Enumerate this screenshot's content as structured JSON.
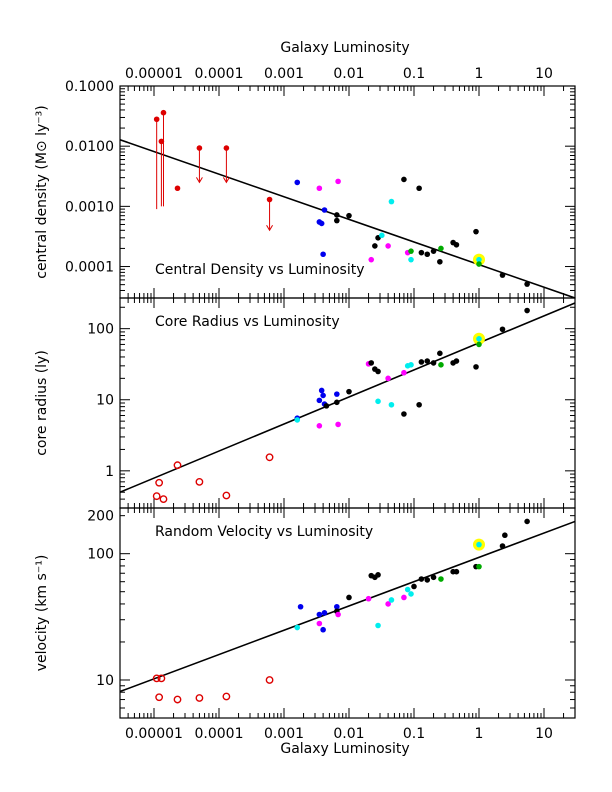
{
  "figure": {
    "top_axis_label": "Galaxy Luminosity",
    "bottom_axis_label": "Galaxy Luminosity"
  },
  "colors": {
    "red": "#dd0000",
    "blue": "#0000ee",
    "magenta": "#ff00ff",
    "cyan": "#00eeee",
    "black": "#000000",
    "green": "#00aa00",
    "highlight": "#ffff00"
  },
  "chart_data": [
    {
      "type": "scatter",
      "id": "density",
      "title": "Central Density vs Luminosity",
      "ylabel": "central density (M⊙ ly⁻³)",
      "xscale": "log",
      "yscale": "log",
      "xlim": [
        3e-06,
        30
      ],
      "ylim": [
        3e-05,
        0.1
      ],
      "xticks": [
        {
          "v": 1e-05,
          "label": "0.00001"
        },
        {
          "v": 0.0001,
          "label": "0.0001"
        },
        {
          "v": 0.001,
          "label": "0.001"
        },
        {
          "v": 0.01,
          "label": "0.01"
        },
        {
          "v": 0.1,
          "label": "0.1"
        },
        {
          "v": 1,
          "label": "1"
        },
        {
          "v": 10,
          "label": "10"
        }
      ],
      "yticks": [
        {
          "v": 0.0001,
          "label": "0.0001"
        },
        {
          "v": 0.001,
          "label": "0.0010"
        },
        {
          "v": 0.01,
          "label": "0.0100"
        },
        {
          "v": 0.1,
          "label": "0.1000"
        }
      ],
      "fit_line": {
        "x": [
          3e-06,
          30
        ],
        "y": [
          0.0128,
          3e-05
        ]
      },
      "points": [
        {
          "x": 1.1e-05,
          "y": 0.028,
          "c": "red",
          "err_to": 0.0009
        },
        {
          "x": 1.3e-05,
          "y": 0.012,
          "c": "red",
          "err_to": 0.001
        },
        {
          "x": 1.4e-05,
          "y": 0.036,
          "c": "red",
          "err_to": 0.001
        },
        {
          "x": 2.3e-05,
          "y": 0.002,
          "c": "red"
        },
        {
          "x": 5e-05,
          "y": 0.0093,
          "c": "red",
          "arrow_to": 0.0025
        },
        {
          "x": 0.00013,
          "y": 0.0093,
          "c": "red",
          "arrow_to": 0.0025
        },
        {
          "x": 0.0006,
          "y": 0.0013,
          "c": "red",
          "arrow_to": 0.0004
        },
        {
          "x": 0.0016,
          "y": 0.0025,
          "c": "blue"
        },
        {
          "x": 0.0035,
          "y": 0.00055,
          "c": "blue"
        },
        {
          "x": 0.0038,
          "y": 0.00052,
          "c": "blue"
        },
        {
          "x": 0.0042,
          "y": 0.00087,
          "c": "blue"
        },
        {
          "x": 0.004,
          "y": 0.00016,
          "c": "blue"
        },
        {
          "x": 0.0035,
          "y": 0.002,
          "c": "magenta"
        },
        {
          "x": 0.0068,
          "y": 0.0026,
          "c": "magenta"
        },
        {
          "x": 0.0065,
          "y": 0.00072,
          "c": "black"
        },
        {
          "x": 0.0065,
          "y": 0.00058,
          "c": "black"
        },
        {
          "x": 0.01,
          "y": 0.0007,
          "c": "black"
        },
        {
          "x": 0.025,
          "y": 0.00022,
          "c": "black"
        },
        {
          "x": 0.028,
          "y": 0.0003,
          "c": "black"
        },
        {
          "x": 0.032,
          "y": 0.00033,
          "c": "cyan"
        },
        {
          "x": 0.022,
          "y": 0.00013,
          "c": "magenta"
        },
        {
          "x": 0.04,
          "y": 0.00022,
          "c": "magenta"
        },
        {
          "x": 0.045,
          "y": 0.0012,
          "c": "cyan"
        },
        {
          "x": 0.07,
          "y": 0.0028,
          "c": "black"
        },
        {
          "x": 0.08,
          "y": 0.00017,
          "c": "magenta"
        },
        {
          "x": 0.09,
          "y": 0.00013,
          "c": "cyan"
        },
        {
          "x": 0.09,
          "y": 0.00018,
          "c": "green"
        },
        {
          "x": 0.12,
          "y": 0.002,
          "c": "black"
        },
        {
          "x": 0.13,
          "y": 0.00017,
          "c": "black"
        },
        {
          "x": 0.16,
          "y": 0.00016,
          "c": "black"
        },
        {
          "x": 0.2,
          "y": 0.00018,
          "c": "black"
        },
        {
          "x": 0.25,
          "y": 0.00012,
          "c": "black"
        },
        {
          "x": 0.26,
          "y": 0.0002,
          "c": "green"
        },
        {
          "x": 0.4,
          "y": 0.00025,
          "c": "black"
        },
        {
          "x": 0.45,
          "y": 0.00023,
          "c": "black"
        },
        {
          "x": 0.9,
          "y": 0.00038,
          "c": "black"
        },
        {
          "x": 1,
          "y": 0.00013,
          "c": "cyan",
          "highlight": true
        },
        {
          "x": 1,
          "y": 0.00011,
          "c": "green"
        },
        {
          "x": 2.3,
          "y": 7.2e-05,
          "c": "black"
        },
        {
          "x": 5.5,
          "y": 5.1e-05,
          "c": "black"
        }
      ]
    },
    {
      "type": "scatter",
      "id": "radius",
      "title": "Core Radius vs Luminosity",
      "ylabel": "core radius (ly)",
      "xscale": "log",
      "yscale": "log",
      "xlim": [
        3e-06,
        30
      ],
      "ylim": [
        0.3,
        270
      ],
      "xticks": [
        {
          "v": 1e-05,
          "label": ""
        },
        {
          "v": 0.0001,
          "label": ""
        },
        {
          "v": 0.001,
          "label": ""
        },
        {
          "v": 0.01,
          "label": ""
        },
        {
          "v": 0.1,
          "label": ""
        },
        {
          "v": 1,
          "label": ""
        },
        {
          "v": 10,
          "label": ""
        }
      ],
      "yticks": [
        {
          "v": 1,
          "label": "1"
        },
        {
          "v": 10,
          "label": "10"
        },
        {
          "v": 100,
          "label": "100"
        }
      ],
      "fit_line": {
        "x": [
          3e-06,
          30
        ],
        "y": [
          0.5,
          230
        ]
      },
      "points": [
        {
          "x": 1.1e-05,
          "y": 0.44,
          "c": "red",
          "open": true
        },
        {
          "x": 1.2e-05,
          "y": 0.68,
          "c": "red",
          "open": true
        },
        {
          "x": 1.4e-05,
          "y": 0.4,
          "c": "red",
          "open": true
        },
        {
          "x": 2.3e-05,
          "y": 1.2,
          "c": "red",
          "open": true
        },
        {
          "x": 5e-05,
          "y": 0.7,
          "c": "red",
          "open": true
        },
        {
          "x": 0.00013,
          "y": 0.45,
          "c": "red",
          "open": true
        },
        {
          "x": 0.0006,
          "y": 1.55,
          "c": "red",
          "open": true
        },
        {
          "x": 0.0016,
          "y": 5.5,
          "c": "blue"
        },
        {
          "x": 0.0016,
          "y": 5.2,
          "c": "cyan"
        },
        {
          "x": 0.0035,
          "y": 4.3,
          "c": "magenta"
        },
        {
          "x": 0.0035,
          "y": 9.8,
          "c": "blue"
        },
        {
          "x": 0.0038,
          "y": 13.5,
          "c": "blue"
        },
        {
          "x": 0.004,
          "y": 11.5,
          "c": "blue"
        },
        {
          "x": 0.0042,
          "y": 8.7,
          "c": "blue"
        },
        {
          "x": 0.0045,
          "y": 8.2,
          "c": "black"
        },
        {
          "x": 0.0065,
          "y": 12,
          "c": "blue"
        },
        {
          "x": 0.0065,
          "y": 9.2,
          "c": "black"
        },
        {
          "x": 0.0068,
          "y": 4.5,
          "c": "magenta"
        },
        {
          "x": 0.01,
          "y": 13,
          "c": "black"
        },
        {
          "x": 0.02,
          "y": 32,
          "c": "magenta"
        },
        {
          "x": 0.022,
          "y": 33,
          "c": "black"
        },
        {
          "x": 0.025,
          "y": 27,
          "c": "black"
        },
        {
          "x": 0.028,
          "y": 25,
          "c": "black"
        },
        {
          "x": 0.028,
          "y": 9.5,
          "c": "cyan"
        },
        {
          "x": 0.04,
          "y": 20,
          "c": "magenta"
        },
        {
          "x": 0.045,
          "y": 8.5,
          "c": "cyan"
        },
        {
          "x": 0.07,
          "y": 6.3,
          "c": "black"
        },
        {
          "x": 0.08,
          "y": 30,
          "c": "cyan"
        },
        {
          "x": 0.07,
          "y": 24,
          "c": "magenta"
        },
        {
          "x": 0.09,
          "y": 31,
          "c": "cyan"
        },
        {
          "x": 0.12,
          "y": 8.5,
          "c": "black"
        },
        {
          "x": 0.13,
          "y": 34,
          "c": "black"
        },
        {
          "x": 0.16,
          "y": 35,
          "c": "black"
        },
        {
          "x": 0.2,
          "y": 33,
          "c": "black"
        },
        {
          "x": 0.25,
          "y": 45,
          "c": "black"
        },
        {
          "x": 0.26,
          "y": 31,
          "c": "green"
        },
        {
          "x": 0.4,
          "y": 33,
          "c": "black"
        },
        {
          "x": 0.45,
          "y": 35,
          "c": "black"
        },
        {
          "x": 0.9,
          "y": 29,
          "c": "black"
        },
        {
          "x": 1,
          "y": 72,
          "c": "cyan",
          "highlight": true
        },
        {
          "x": 1,
          "y": 60,
          "c": "green"
        },
        {
          "x": 2.3,
          "y": 98,
          "c": "black"
        },
        {
          "x": 5.5,
          "y": 180,
          "c": "black"
        }
      ]
    },
    {
      "type": "scatter",
      "id": "velocity",
      "title": "Random Velocity vs Luminosity",
      "ylabel": "velocity (km s⁻¹)",
      "xscale": "log",
      "yscale": "log",
      "xlim": [
        3e-06,
        30
      ],
      "ylim": [
        5,
        230
      ],
      "xticks": [
        {
          "v": 1e-05,
          "label": "0.00001"
        },
        {
          "v": 0.0001,
          "label": "0.0001"
        },
        {
          "v": 0.001,
          "label": "0.001"
        },
        {
          "v": 0.01,
          "label": "0.01"
        },
        {
          "v": 0.1,
          "label": "0.1"
        },
        {
          "v": 1,
          "label": "1"
        },
        {
          "v": 10,
          "label": "10"
        }
      ],
      "yticks": [
        {
          "v": 10,
          "label": "10"
        },
        {
          "v": 100,
          "label": "100"
        },
        {
          "v": 200,
          "label": "200"
        }
      ],
      "xlabel": "Galaxy Luminosity",
      "fit_line": {
        "x": [
          3e-06,
          30
        ],
        "y": [
          8.1,
          180
        ]
      },
      "points": [
        {
          "x": 1.1e-05,
          "y": 10.3,
          "c": "red",
          "open": true
        },
        {
          "x": 1.3e-05,
          "y": 10.3,
          "c": "red",
          "open": true
        },
        {
          "x": 1.2e-05,
          "y": 7.3,
          "c": "red",
          "open": true
        },
        {
          "x": 2.3e-05,
          "y": 7,
          "c": "red",
          "open": true
        },
        {
          "x": 5e-05,
          "y": 7.2,
          "c": "red",
          "open": true
        },
        {
          "x": 0.00013,
          "y": 7.4,
          "c": "red",
          "open": true
        },
        {
          "x": 0.0006,
          "y": 10,
          "c": "red",
          "open": true
        },
        {
          "x": 0.0016,
          "y": 26,
          "c": "cyan"
        },
        {
          "x": 0.0018,
          "y": 38,
          "c": "blue"
        },
        {
          "x": 0.0035,
          "y": 33,
          "c": "blue"
        },
        {
          "x": 0.0035,
          "y": 28,
          "c": "magenta"
        },
        {
          "x": 0.004,
          "y": 25,
          "c": "blue"
        },
        {
          "x": 0.0042,
          "y": 34,
          "c": "blue"
        },
        {
          "x": 0.0065,
          "y": 38,
          "c": "blue"
        },
        {
          "x": 0.0065,
          "y": 35,
          "c": "black"
        },
        {
          "x": 0.0068,
          "y": 33,
          "c": "magenta"
        },
        {
          "x": 0.01,
          "y": 45,
          "c": "black"
        },
        {
          "x": 0.02,
          "y": 44,
          "c": "magenta"
        },
        {
          "x": 0.022,
          "y": 67,
          "c": "black"
        },
        {
          "x": 0.025,
          "y": 65,
          "c": "black"
        },
        {
          "x": 0.028,
          "y": 68,
          "c": "black"
        },
        {
          "x": 0.028,
          "y": 27,
          "c": "cyan"
        },
        {
          "x": 0.04,
          "y": 40,
          "c": "magenta"
        },
        {
          "x": 0.045,
          "y": 43,
          "c": "cyan"
        },
        {
          "x": 0.07,
          "y": 45,
          "c": "magenta"
        },
        {
          "x": 0.08,
          "y": 52,
          "c": "cyan"
        },
        {
          "x": 0.09,
          "y": 48,
          "c": "cyan"
        },
        {
          "x": 0.1,
          "y": 55,
          "c": "black"
        },
        {
          "x": 0.13,
          "y": 63,
          "c": "black"
        },
        {
          "x": 0.16,
          "y": 62,
          "c": "black"
        },
        {
          "x": 0.2,
          "y": 65,
          "c": "black"
        },
        {
          "x": 0.26,
          "y": 63,
          "c": "green"
        },
        {
          "x": 0.4,
          "y": 72,
          "c": "black"
        },
        {
          "x": 0.45,
          "y": 72,
          "c": "black"
        },
        {
          "x": 0.9,
          "y": 79,
          "c": "black"
        },
        {
          "x": 1,
          "y": 118,
          "c": "cyan",
          "highlight": true
        },
        {
          "x": 1,
          "y": 79,
          "c": "green"
        },
        {
          "x": 2.3,
          "y": 115,
          "c": "black"
        },
        {
          "x": 2.5,
          "y": 140,
          "c": "black"
        },
        {
          "x": 5.5,
          "y": 180,
          "c": "black"
        }
      ]
    }
  ]
}
